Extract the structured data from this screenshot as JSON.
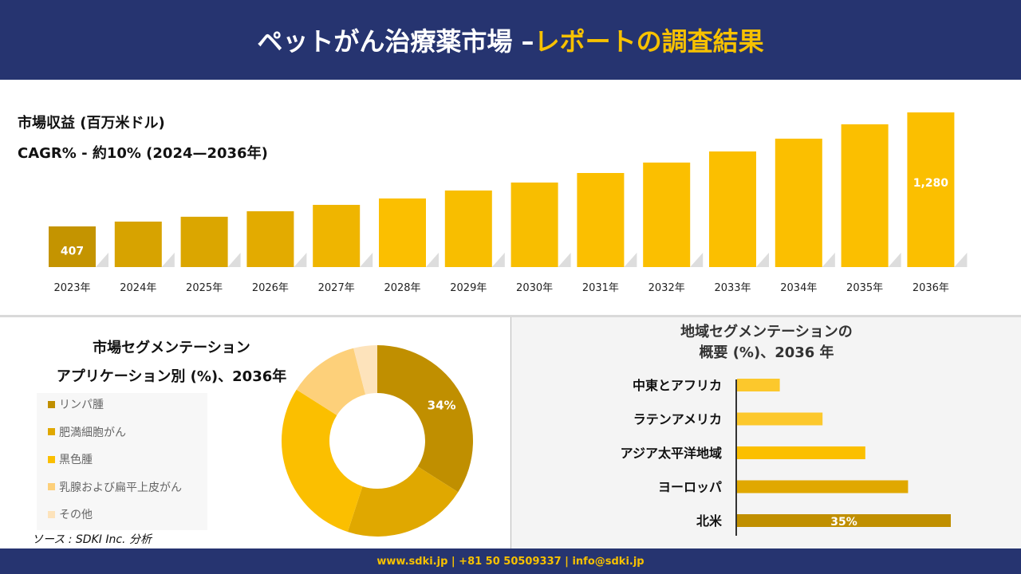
{
  "header": {
    "title_main": "ペットがん治療薬市場 –",
    "title_accent": "レポートの調査結果"
  },
  "revenue": {
    "label": "市場収益 (百万米ドル)",
    "cagr": "CAGR% - 約10% (2024—2036年)"
  },
  "chart_data": [
    {
      "type": "bar",
      "title": "",
      "categories": [
        "2023年",
        "2024年",
        "2025年",
        "2026年",
        "2027年",
        "2028年",
        "2029年",
        "2030年",
        "2031年",
        "2032年",
        "2033年",
        "2034年",
        "2035年",
        "2036年"
      ],
      "values": [
        407,
        444,
        481,
        523,
        572,
        621,
        682,
        743,
        816,
        896,
        981,
        1079,
        1189,
        1280
      ],
      "data_labels": {
        "0": "407",
        "13": "1,280"
      },
      "colors": [
        "#c49400",
        "#d7a300",
        "#dba600",
        "#e3ab00",
        "#efb500",
        "#fbbf00",
        "#f8be00",
        "#f8be00",
        "#fbbf00",
        "#fbbf00",
        "#fbbf00",
        "#fbbf00",
        "#fbbf00",
        "#fbbf00"
      ]
    },
    {
      "type": "pie",
      "title": "市場セグメンテーション アプリケーション別 (%)、2036年",
      "labels": [
        "リンパ腫",
        "肥満細胞がん",
        "黒色腫",
        "乳腺および扁平上皮がん",
        "その他"
      ],
      "values": [
        34,
        21,
        29,
        12,
        4
      ],
      "data_labels": {
        "0": "34%"
      },
      "colors": [
        "#c08f00",
        "#e0a800",
        "#fbbf00",
        "#fdd07a",
        "#fde3bb"
      ]
    },
    {
      "type": "bar",
      "orientation": "horizontal",
      "title": "地域セグメンテーションの概要 (%)、2036 年",
      "categories": [
        "中東とアフリカ",
        "ラテンアメリカ",
        "アジア太平洋地域",
        "ヨーロッパ",
        "北米"
      ],
      "values": [
        7,
        14,
        21,
        28,
        35
      ],
      "data_labels": {
        "4": "35%"
      },
      "colors": [
        "#fcc82c",
        "#fcc82c",
        "#fbbf00",
        "#e0a800",
        "#c08f00"
      ]
    }
  ],
  "segmentation": {
    "title_line1": "市場セグメンテーション",
    "title_line2": "アプリケーション別 (%)、2036年"
  },
  "region": {
    "title_line1": "地域セグメンテーションの",
    "title_line2": "概要 (%)、2036 年"
  },
  "source": "ソース : SDKI Inc. 分析",
  "footer": {
    "text": "www.sdki.jp | +81 50 50509337 | info@sdki.jp"
  }
}
